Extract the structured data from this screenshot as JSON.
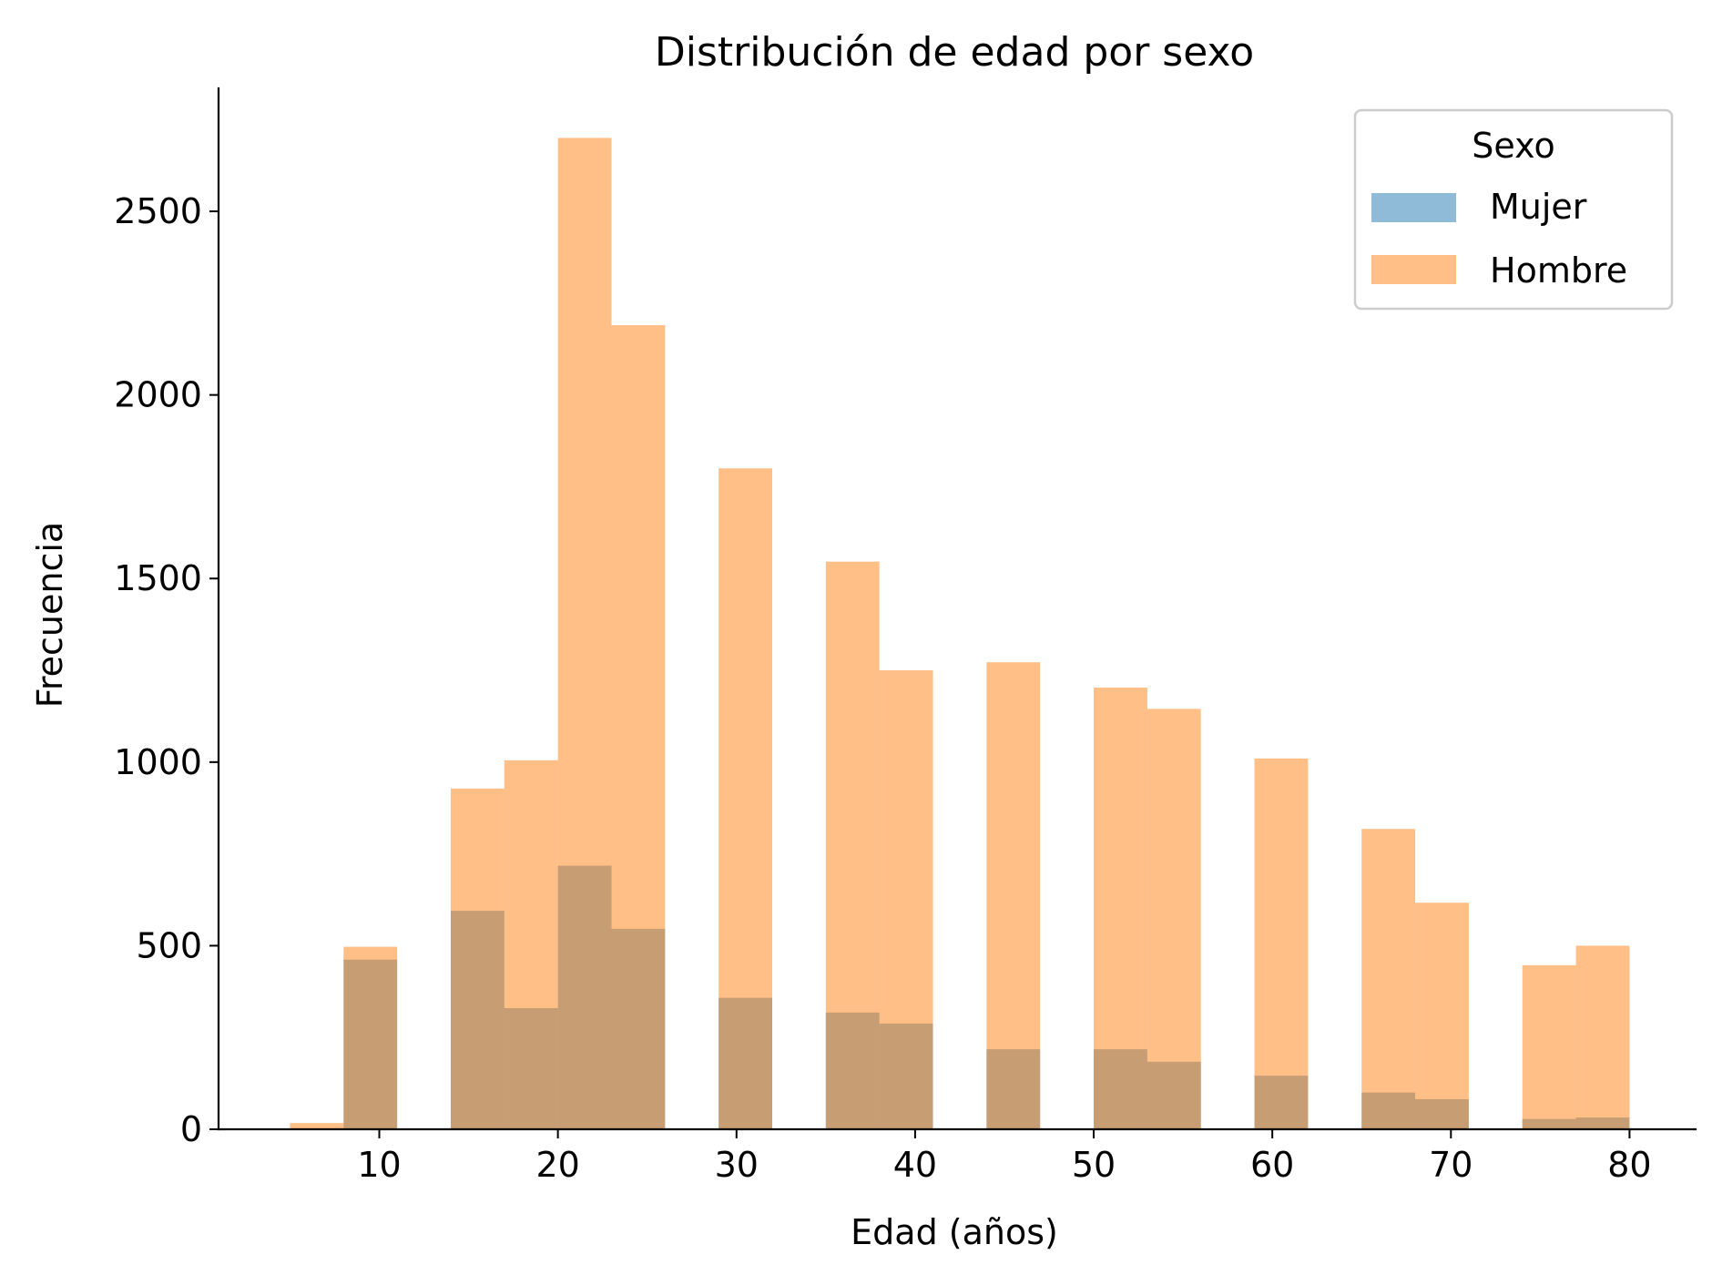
{
  "chart_data": {
    "type": "bar",
    "title": "Distribución de edad por sexo",
    "xlabel": "Edad (años)",
    "ylabel": "Frecuencia",
    "xlim": [
      1,
      83.7
    ],
    "ylim": [
      0,
      2835
    ],
    "x_ticks": [
      10,
      20,
      30,
      40,
      50,
      60,
      70,
      80
    ],
    "y_ticks": [
      0,
      500,
      1000,
      1500,
      2000,
      2500
    ],
    "grid": false,
    "legend": {
      "title": "Sexo",
      "position": "top-right"
    },
    "bin_edges": [
      5,
      8,
      11,
      14,
      17,
      20,
      23,
      26,
      29,
      32,
      35,
      38,
      41,
      44,
      47,
      50,
      53,
      56,
      59,
      62,
      65,
      68,
      71,
      74,
      77,
      80
    ],
    "series": [
      {
        "name": "Mujer",
        "color": "#1f77b4",
        "values": [
          0,
          462,
          0,
          595,
          330,
          718,
          546,
          0,
          358,
          0,
          318,
          288,
          0,
          218,
          0,
          218,
          184,
          0,
          146,
          0,
          100,
          82,
          0,
          28,
          32
        ]
      },
      {
        "name": "Hombre",
        "color": "#ff7f0e",
        "values": [
          17,
          497,
          0,
          928,
          1005,
          2700,
          2190,
          0,
          1800,
          0,
          1546,
          1250,
          0,
          1272,
          0,
          1203,
          1145,
          0,
          1010,
          0,
          818,
          617,
          0,
          447,
          500
        ]
      }
    ]
  }
}
